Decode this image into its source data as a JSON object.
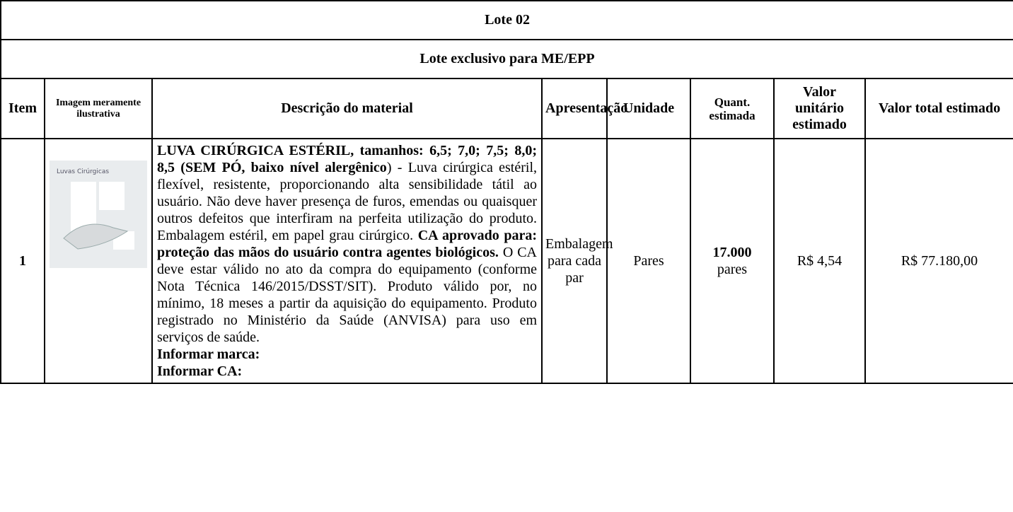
{
  "table": {
    "lot_title": "Lote 02",
    "lot_subtitle": "Lote exclusivo para ME/EPP",
    "headers": [
      "Item",
      "Imagem meramente ilustrativa",
      "Descrição do material",
      "Apresentação",
      "Unidade",
      "Quant. estimada",
      "Valor unitário estimado",
      "Valor total estimado"
    ],
    "row": {
      "item": "1",
      "image_caption": "Luvas Cirúrgicas",
      "description": {
        "segments": [
          {
            "text": "LUVA CIRÚRGICA ESTÉRIL, tamanhos: 6,5; 7,0; 7,5; 8,0; 8,5 (SEM PÓ, baixo nível alergênico",
            "bold": true
          },
          {
            "text": ") - Luva cirúrgica estéril, flexível, resistente, proporcionando alta sensibilidade tátil ao usuário.  Não deve haver presença de furos, emendas ou quaisquer outros defeitos que interfiram na perfeita utilização do produto. Embalagem estéril, em papel grau cirúrgico. ",
            "bold": false
          },
          {
            "text": "CA aprovado para: proteção das mãos do usuário contra agentes biológicos.",
            "bold": true
          },
          {
            "text": " O CA deve estar válido no ato da compra do equipamento (conforme Nota Técnica 146/2015/DSST/SIT). Produto válido por, no mínimo, 18 meses a partir da aquisição do equipamento. Produto registrado no Ministério da Saúde (ANVISA) para uso em serviços de saúde.",
            "bold": false
          }
        ],
        "extra_lines": [
          "Informar marca:",
          "Informar CA:"
        ]
      },
      "presentation": "Embalagem para cada par",
      "unit": "Pares",
      "quantity": {
        "number": "17.000",
        "unit": "pares"
      },
      "unit_value": "R$ 4,54",
      "total_value": "R$ 77.180,00"
    }
  }
}
